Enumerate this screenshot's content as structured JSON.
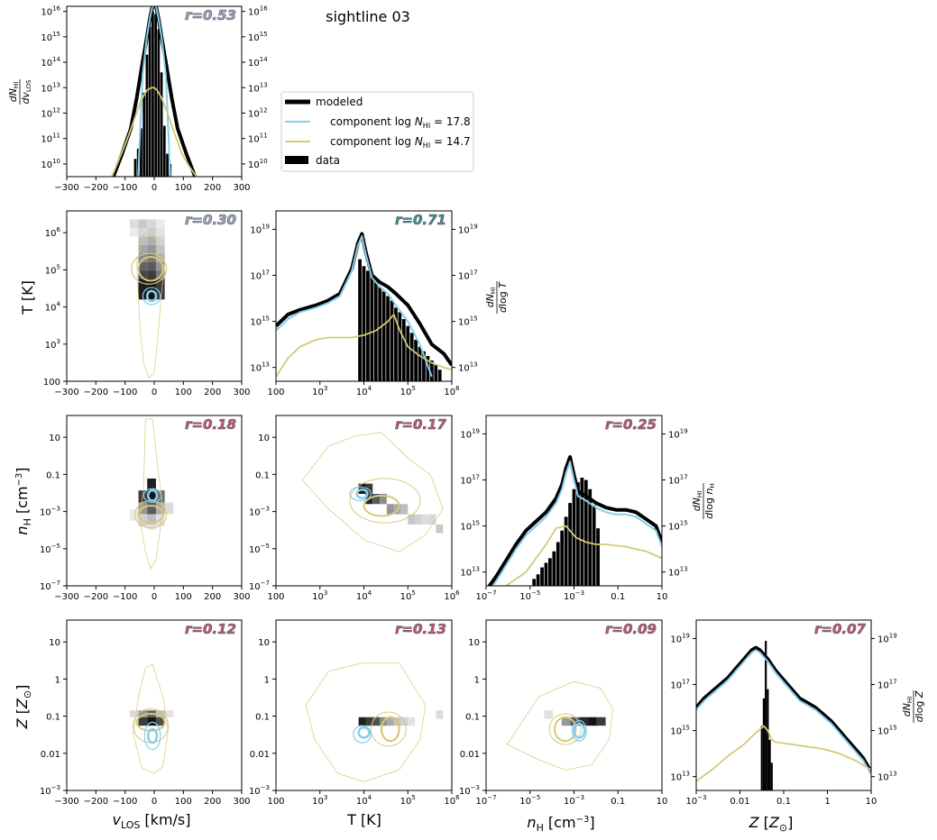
{
  "figure": {
    "title": "sightline 03",
    "legend": {
      "placement": "top-center",
      "entries": [
        {
          "label": "modeled",
          "color": "#000000",
          "kind": "thick-line"
        },
        {
          "label": "component log N_HI = 17.8",
          "color": "#87CEEB",
          "kind": "line"
        },
        {
          "label": "component log N_HI = 14.7",
          "color": "#D4C97A",
          "kind": "line"
        },
        {
          "label": "data",
          "color": "#000000",
          "kind": "patch"
        }
      ]
    },
    "colors": {
      "modeled": "#000000",
      "comp1": "#87CEEB",
      "comp2": "#D4C97A",
      "r_high": "#3f8f9a",
      "r_mid": "#9aa6c4",
      "r_low": "#c1577f"
    }
  },
  "chart_data": [
    {
      "type": "line",
      "panel": "vlos-1d",
      "xlabel": "",
      "ylabel": "dN_HI / dv_LOS",
      "x_ticks": [
        "−300",
        "−200",
        "−100",
        "0",
        "100",
        "200",
        "300"
      ],
      "y_ticks": [
        "10^10",
        "10^11",
        "10^12",
        "10^13",
        "10^14",
        "10^15",
        "10^16"
      ],
      "right_y_ticks": [
        "10^10",
        "10^11",
        "10^12",
        "10^13",
        "10^14",
        "10^15",
        "10^16"
      ],
      "xlim": [
        -300,
        300
      ],
      "ylim_log10": [
        9.5,
        16.2
      ],
      "r_label": "r = 0.53",
      "series": [
        {
          "name": "modeled",
          "x": [
            -140,
            -110,
            -80,
            -60,
            -40,
            -25,
            -15,
            -8,
            0,
            8,
            15,
            25,
            40,
            60,
            80,
            110,
            140
          ],
          "log_y": [
            9.5,
            10.4,
            11.4,
            12.6,
            14.0,
            15.0,
            15.7,
            16.1,
            16.3,
            16.1,
            15.7,
            15.0,
            14.0,
            12.6,
            11.4,
            10.4,
            9.5
          ]
        },
        {
          "name": "component log N_HI = 17.8",
          "x": [
            -55,
            -40,
            -25,
            -15,
            -8,
            0,
            8,
            15,
            25,
            40,
            55
          ],
          "log_y": [
            9.5,
            13.5,
            15.0,
            15.7,
            16.1,
            16.3,
            16.1,
            15.7,
            15.0,
            13.5,
            9.5
          ]
        },
        {
          "name": "component log N_HI = 14.7",
          "x": [
            -145,
            -120,
            -95,
            -70,
            -45,
            -25,
            -10,
            0,
            10,
            25,
            45,
            70,
            95,
            120,
            145
          ],
          "log_y": [
            9.5,
            10.2,
            10.9,
            11.7,
            12.5,
            12.9,
            13.0,
            13.0,
            12.9,
            12.6,
            12.0,
            11.2,
            10.4,
            9.9,
            9.5
          ]
        },
        {
          "name": "data",
          "x": [
            -65,
            -55,
            -45,
            -35,
            -25,
            -15,
            -5,
            5,
            15,
            25,
            35,
            45,
            55
          ],
          "log_y": [
            10.2,
            10.6,
            11.4,
            12.8,
            14.3,
            15.4,
            16.0,
            15.9,
            15.3,
            13.6,
            11.5,
            10.4,
            10.0
          ]
        }
      ]
    },
    {
      "type": "heatmap",
      "panel": "vlos-T",
      "xlabel": "",
      "ylabel": "T [K]",
      "x_ticks": [
        "−300",
        "−200",
        "−100",
        "0",
        "100",
        "200",
        "300"
      ],
      "y_ticks": [
        "100",
        "10^3",
        "10^4",
        "10^5",
        "10^6"
      ],
      "r_label": "r = 0.30",
      "data_columns_x": [
        -75,
        -45,
        -15,
        15
      ],
      "cells_log_y_range": [
        4.2,
        6.5
      ]
    },
    {
      "type": "line",
      "panel": "T-1d",
      "xlabel": "",
      "ylabel": "dN_HI / dlog T",
      "x_ticks": [
        "100",
        "10^3",
        "10^4",
        "10^5",
        "10^6"
      ],
      "y_ticks": [
        "10^13",
        "10^15",
        "10^17",
        "10^19"
      ],
      "right_y_ticks": [
        "10^13",
        "10^15",
        "10^17",
        "10^19"
      ],
      "xlim_log10": [
        2,
        6.4
      ],
      "ylim_log10": [
        12.4,
        19.8
      ],
      "r_label": "r = 0.71",
      "series": [
        {
          "name": "modeled",
          "log_x": [
            2.0,
            2.3,
            2.6,
            3.0,
            3.3,
            3.6,
            3.9,
            4.05,
            4.15,
            4.25,
            4.4,
            4.6,
            4.8,
            5.0,
            5.3,
            5.6,
            5.9,
            6.2,
            6.4
          ],
          "log_y": [
            14.8,
            15.3,
            15.5,
            15.7,
            15.9,
            16.2,
            17.3,
            18.4,
            18.8,
            18.0,
            17.0,
            16.7,
            16.5,
            16.2,
            15.7,
            14.9,
            14.0,
            13.6,
            13.1
          ]
        },
        {
          "name": "component log N_HI = 17.8",
          "log_x": [
            2.0,
            2.3,
            2.6,
            3.0,
            3.3,
            3.6,
            3.9,
            4.05,
            4.15,
            4.25,
            4.4,
            4.6,
            4.8,
            5.0,
            5.3,
            5.6,
            5.9
          ],
          "log_y": [
            14.6,
            15.1,
            15.4,
            15.6,
            15.8,
            16.1,
            17.2,
            18.3,
            18.7,
            17.9,
            16.9,
            16.5,
            16.2,
            15.7,
            15.0,
            14.0,
            12.6
          ]
        },
        {
          "name": "component log N_HI = 14.7",
          "log_x": [
            2.0,
            2.3,
            2.6,
            3.0,
            3.3,
            3.6,
            3.9,
            4.2,
            4.5,
            4.8,
            4.95,
            5.1,
            5.3,
            5.6,
            5.9,
            6.2,
            6.4
          ],
          "log_y": [
            12.6,
            13.4,
            13.9,
            14.2,
            14.3,
            14.3,
            14.3,
            14.4,
            14.6,
            15.0,
            15.3,
            14.6,
            13.9,
            13.5,
            13.2,
            13.0,
            12.9
          ]
        },
        {
          "name": "data",
          "log_x": [
            4.1,
            4.2,
            4.3,
            4.4,
            4.5,
            4.6,
            4.7,
            4.8,
            4.9,
            5.0,
            5.1,
            5.2,
            5.3,
            5.4,
            5.5,
            5.6,
            5.7,
            5.8,
            5.9,
            6.0,
            6.1
          ],
          "log_y": [
            17.7,
            17.4,
            17.2,
            17.0,
            16.7,
            16.5,
            16.3,
            16.1,
            15.9,
            15.6,
            15.4,
            15.1,
            14.8,
            14.5,
            14.2,
            13.9,
            13.7,
            13.5,
            13.3,
            13.1,
            12.9
          ]
        }
      ]
    },
    {
      "type": "heatmap",
      "panel": "vlos-nH",
      "xlabel": "",
      "ylabel": "n_H [cm^-3]",
      "x_ticks": [
        "−300",
        "−200",
        "−100",
        "0",
        "100",
        "200",
        "300"
      ],
      "y_ticks": [
        "10^-7",
        "10^-5",
        "10^-3",
        "0.1",
        "10"
      ],
      "r_label": "r = 0.18"
    },
    {
      "type": "heatmap",
      "panel": "T-nH",
      "x_ticks": [
        "100",
        "10^3",
        "10^4",
        "10^5",
        "10^6"
      ],
      "y_ticks": [
        "10^-7",
        "10^-5",
        "10^-3",
        "0.1",
        "10"
      ],
      "r_label": "r = 0.17"
    },
    {
      "type": "line",
      "panel": "nH-1d",
      "xlabel": "",
      "ylabel": "dN_HI / dlog n_H",
      "x_ticks": [
        "10^-7",
        "10^-5",
        "10^-3",
        "0.1",
        "10"
      ],
      "y_ticks": [
        "10^13",
        "10^15",
        "10^17",
        "10^19"
      ],
      "right_y_ticks": [
        "10^13",
        "10^15",
        "10^17",
        "10^19"
      ],
      "xlim_log10": [
        -7,
        1.8
      ],
      "ylim_log10": [
        12.4,
        19.8
      ],
      "r_label": "r = 0.25",
      "series": [
        {
          "name": "modeled",
          "log_x": [
            -7.0,
            -6.5,
            -6.0,
            -5.5,
            -5.0,
            -4.5,
            -4.0,
            -3.5,
            -3.2,
            -3.0,
            -2.8,
            -2.6,
            -2.4,
            -2.0,
            -1.5,
            -1.0,
            -0.5,
            0.0,
            0.5,
            1.0,
            1.5,
            1.8
          ],
          "log_y": [
            12.2,
            12.8,
            13.5,
            14.2,
            14.8,
            15.2,
            15.6,
            16.2,
            16.8,
            17.5,
            18.0,
            17.2,
            16.5,
            16.3,
            16.0,
            15.8,
            15.7,
            15.7,
            15.6,
            15.3,
            15.0,
            14.3
          ]
        },
        {
          "name": "component log N_HI = 17.8",
          "log_x": [
            -7.0,
            -6.5,
            -6.0,
            -5.5,
            -5.0,
            -4.5,
            -4.0,
            -3.5,
            -3.2,
            -3.0,
            -2.8,
            -2.6,
            -2.4,
            -2.0,
            -1.5,
            -1.0,
            -0.5,
            0.0,
            0.5,
            1.0,
            1.5,
            1.8
          ],
          "log_y": [
            12.0,
            12.6,
            13.3,
            14.0,
            14.6,
            15.0,
            15.4,
            16.0,
            16.6,
            17.3,
            17.8,
            17.0,
            16.3,
            16.1,
            15.8,
            15.6,
            15.5,
            15.5,
            15.4,
            15.1,
            14.8,
            14.1
          ]
        },
        {
          "name": "component log N_HI = 14.7",
          "log_x": [
            -7.0,
            -6.0,
            -5.0,
            -4.5,
            -4.0,
            -3.5,
            -3.0,
            -2.5,
            -2.0,
            -1.5,
            -1.0,
            0.0,
            1.0,
            1.8
          ],
          "log_y": [
            12.0,
            12.4,
            13.0,
            13.6,
            14.2,
            14.9,
            15.0,
            14.5,
            14.3,
            14.2,
            14.2,
            14.1,
            13.9,
            13.6
          ]
        },
        {
          "name": "data",
          "log_x": [
            -4.6,
            -4.4,
            -4.2,
            -4.0,
            -3.8,
            -3.6,
            -3.4,
            -3.2,
            -3.0,
            -2.8,
            -2.6,
            -2.4,
            -2.2,
            -2.0,
            -1.8,
            -1.6,
            -1.4
          ],
          "log_y": [
            12.7,
            12.9,
            13.2,
            13.4,
            13.6,
            13.9,
            14.3,
            14.8,
            15.4,
            16.0,
            16.6,
            16.9,
            17.1,
            17.0,
            16.6,
            15.9,
            14.9
          ]
        }
      ]
    },
    {
      "type": "heatmap",
      "panel": "vlos-Z",
      "xlabel": "v_LOS [km/s]",
      "ylabel": "Z [Z_sun]",
      "x_ticks": [
        "−300",
        "−200",
        "−100",
        "0",
        "100",
        "200",
        "300"
      ],
      "y_ticks": [
        "10^-3",
        "0.01",
        "0.1",
        "1",
        "10"
      ],
      "r_label": "r = 0.12"
    },
    {
      "type": "heatmap",
      "panel": "T-Z",
      "xlabel": "T [K]",
      "x_ticks": [
        "100",
        "10^3",
        "10^4",
        "10^5",
        "10^6"
      ],
      "y_ticks": [
        "10^-3",
        "0.01",
        "0.1",
        "1",
        "10"
      ],
      "r_label": "r = 0.13"
    },
    {
      "type": "heatmap",
      "panel": "nH-Z",
      "xlabel": "n_H [cm^-3]",
      "x_ticks": [
        "10^-7",
        "10^-5",
        "10^-3",
        "0.1",
        "10"
      ],
      "y_ticks": [
        "10^-3",
        "0.01",
        "0.1",
        "1",
        "10"
      ],
      "r_label": "r = 0.09"
    },
    {
      "type": "line",
      "panel": "Z-1d",
      "xlabel": "Z [Z_sun]",
      "ylabel": "dN_HI / dlog Z",
      "x_ticks": [
        "10^-3",
        "0.01",
        "0.1",
        "1",
        "10"
      ],
      "y_ticks": [
        "10^13",
        "10^15",
        "10^17",
        "10^19"
      ],
      "right_y_ticks": [
        "10^13",
        "10^15",
        "10^17",
        "10^19"
      ],
      "xlim_log10": [
        -3,
        1.4
      ],
      "ylim_log10": [
        12.4,
        19.8
      ],
      "r_label": "r = 0.07",
      "series": [
        {
          "name": "modeled",
          "log_x": [
            -3.0,
            -2.8,
            -2.6,
            -2.4,
            -2.2,
            -2.0,
            -1.8,
            -1.6,
            -1.5,
            -1.4,
            -1.2,
            -1.0,
            -0.8,
            -0.6,
            -0.4,
            -0.2,
            0.0,
            0.2,
            0.4,
            0.6,
            0.8,
            1.0,
            1.2,
            1.4
          ],
          "log_y": [
            16.0,
            16.4,
            16.7,
            17.0,
            17.3,
            17.7,
            18.1,
            18.5,
            18.6,
            18.5,
            18.1,
            17.6,
            17.2,
            16.8,
            16.4,
            16.2,
            16.0,
            15.7,
            15.4,
            15.0,
            14.6,
            14.2,
            13.8,
            13.2
          ]
        },
        {
          "name": "component log N_HI = 17.8",
          "log_x": [
            -3.0,
            -2.8,
            -2.6,
            -2.4,
            -2.2,
            -2.0,
            -1.8,
            -1.6,
            -1.5,
            -1.4,
            -1.2,
            -1.0,
            -0.8,
            -0.6,
            -0.4,
            -0.2,
            0.0,
            0.2,
            0.4,
            0.6,
            0.8,
            1.0,
            1.2,
            1.4
          ],
          "log_y": [
            15.9,
            16.3,
            16.6,
            16.9,
            17.2,
            17.6,
            18.0,
            18.4,
            18.5,
            18.4,
            18.0,
            17.5,
            17.1,
            16.7,
            16.3,
            16.1,
            15.9,
            15.6,
            15.3,
            14.9,
            14.5,
            14.1,
            13.7,
            13.1
          ]
        },
        {
          "name": "component log N_HI = 14.7",
          "log_x": [
            -3.0,
            -2.6,
            -2.2,
            -1.8,
            -1.5,
            -1.3,
            -1.2,
            -1.1,
            -1.0,
            -0.6,
            -0.2,
            0.2,
            0.6,
            1.0,
            1.4
          ],
          "log_y": [
            12.8,
            13.3,
            13.9,
            14.4,
            14.9,
            15.2,
            15.0,
            14.6,
            14.5,
            14.4,
            14.3,
            14.2,
            14.0,
            13.7,
            13.3
          ]
        },
        {
          "name": "data",
          "log_x": [
            -1.35,
            -1.3,
            -1.25,
            -1.2,
            -1.15,
            -1.1
          ],
          "log_y": [
            15.2,
            16.4,
            18.9,
            16.8,
            14.6,
            13.6
          ]
        }
      ]
    }
  ]
}
